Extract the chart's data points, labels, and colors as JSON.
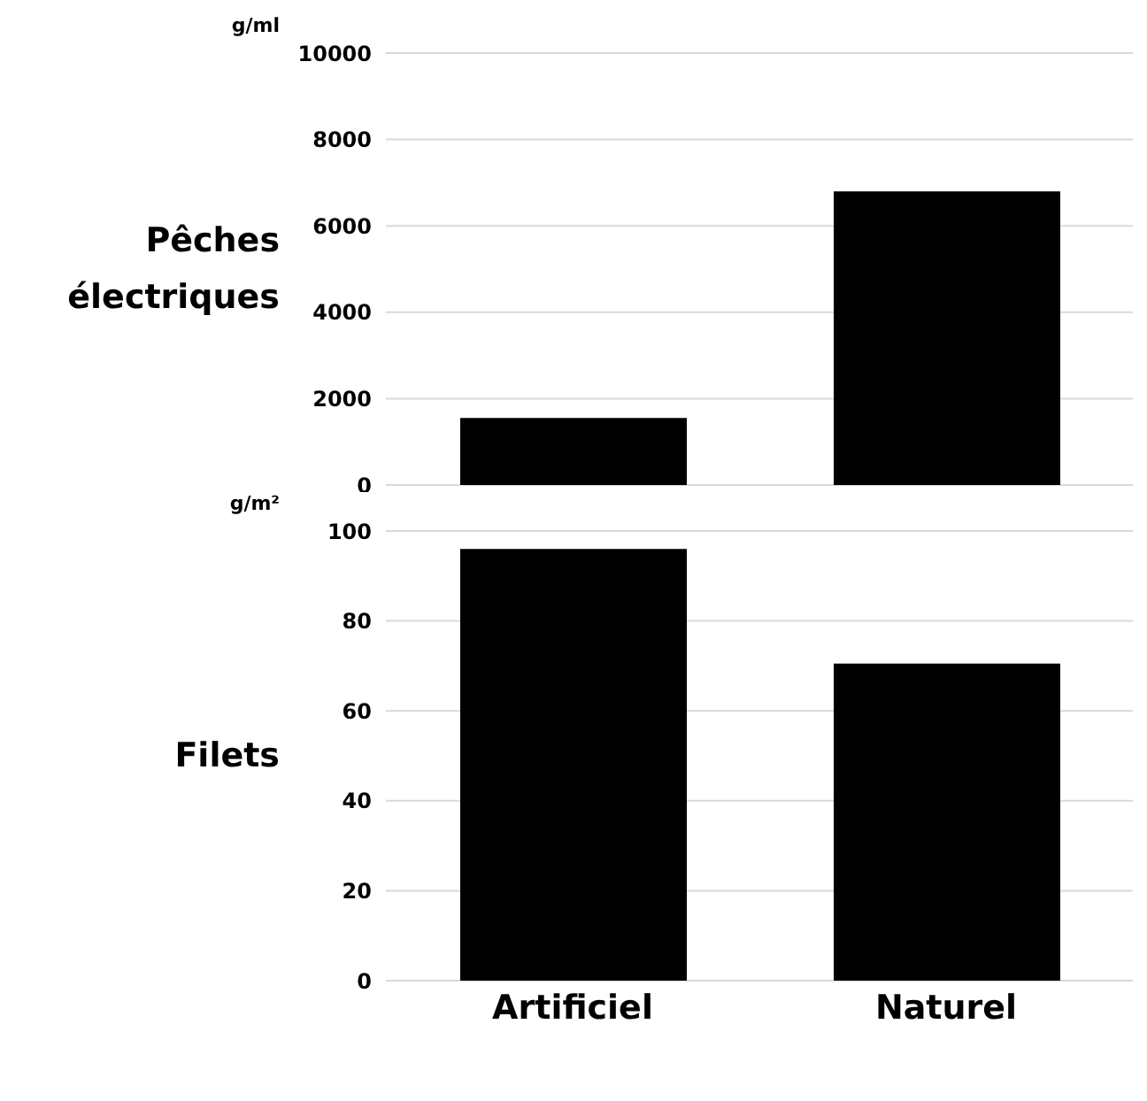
{
  "chart_data": [
    {
      "type": "bar",
      "title": "Pêches électriques",
      "ylabel": "g/ml",
      "categories": [
        null,
        null
      ],
      "values": [
        1550,
        6800
      ],
      "color": "#000000",
      "ylim": [
        0,
        10000
      ],
      "yticks": [
        0,
        2000,
        4000,
        6000,
        8000,
        10000
      ],
      "grid": "y",
      "tick_labels": "y"
    },
    {
      "type": "bar",
      "title": "Filets",
      "ylabel": "g/m²",
      "categories": [
        "Artificiel",
        "Naturel"
      ],
      "values": [
        96,
        70.5
      ],
      "color": "#000000",
      "ylim": [
        0,
        100
      ],
      "yticks": [
        0,
        20,
        40,
        60,
        80,
        100
      ],
      "grid": "y"
    }
  ]
}
